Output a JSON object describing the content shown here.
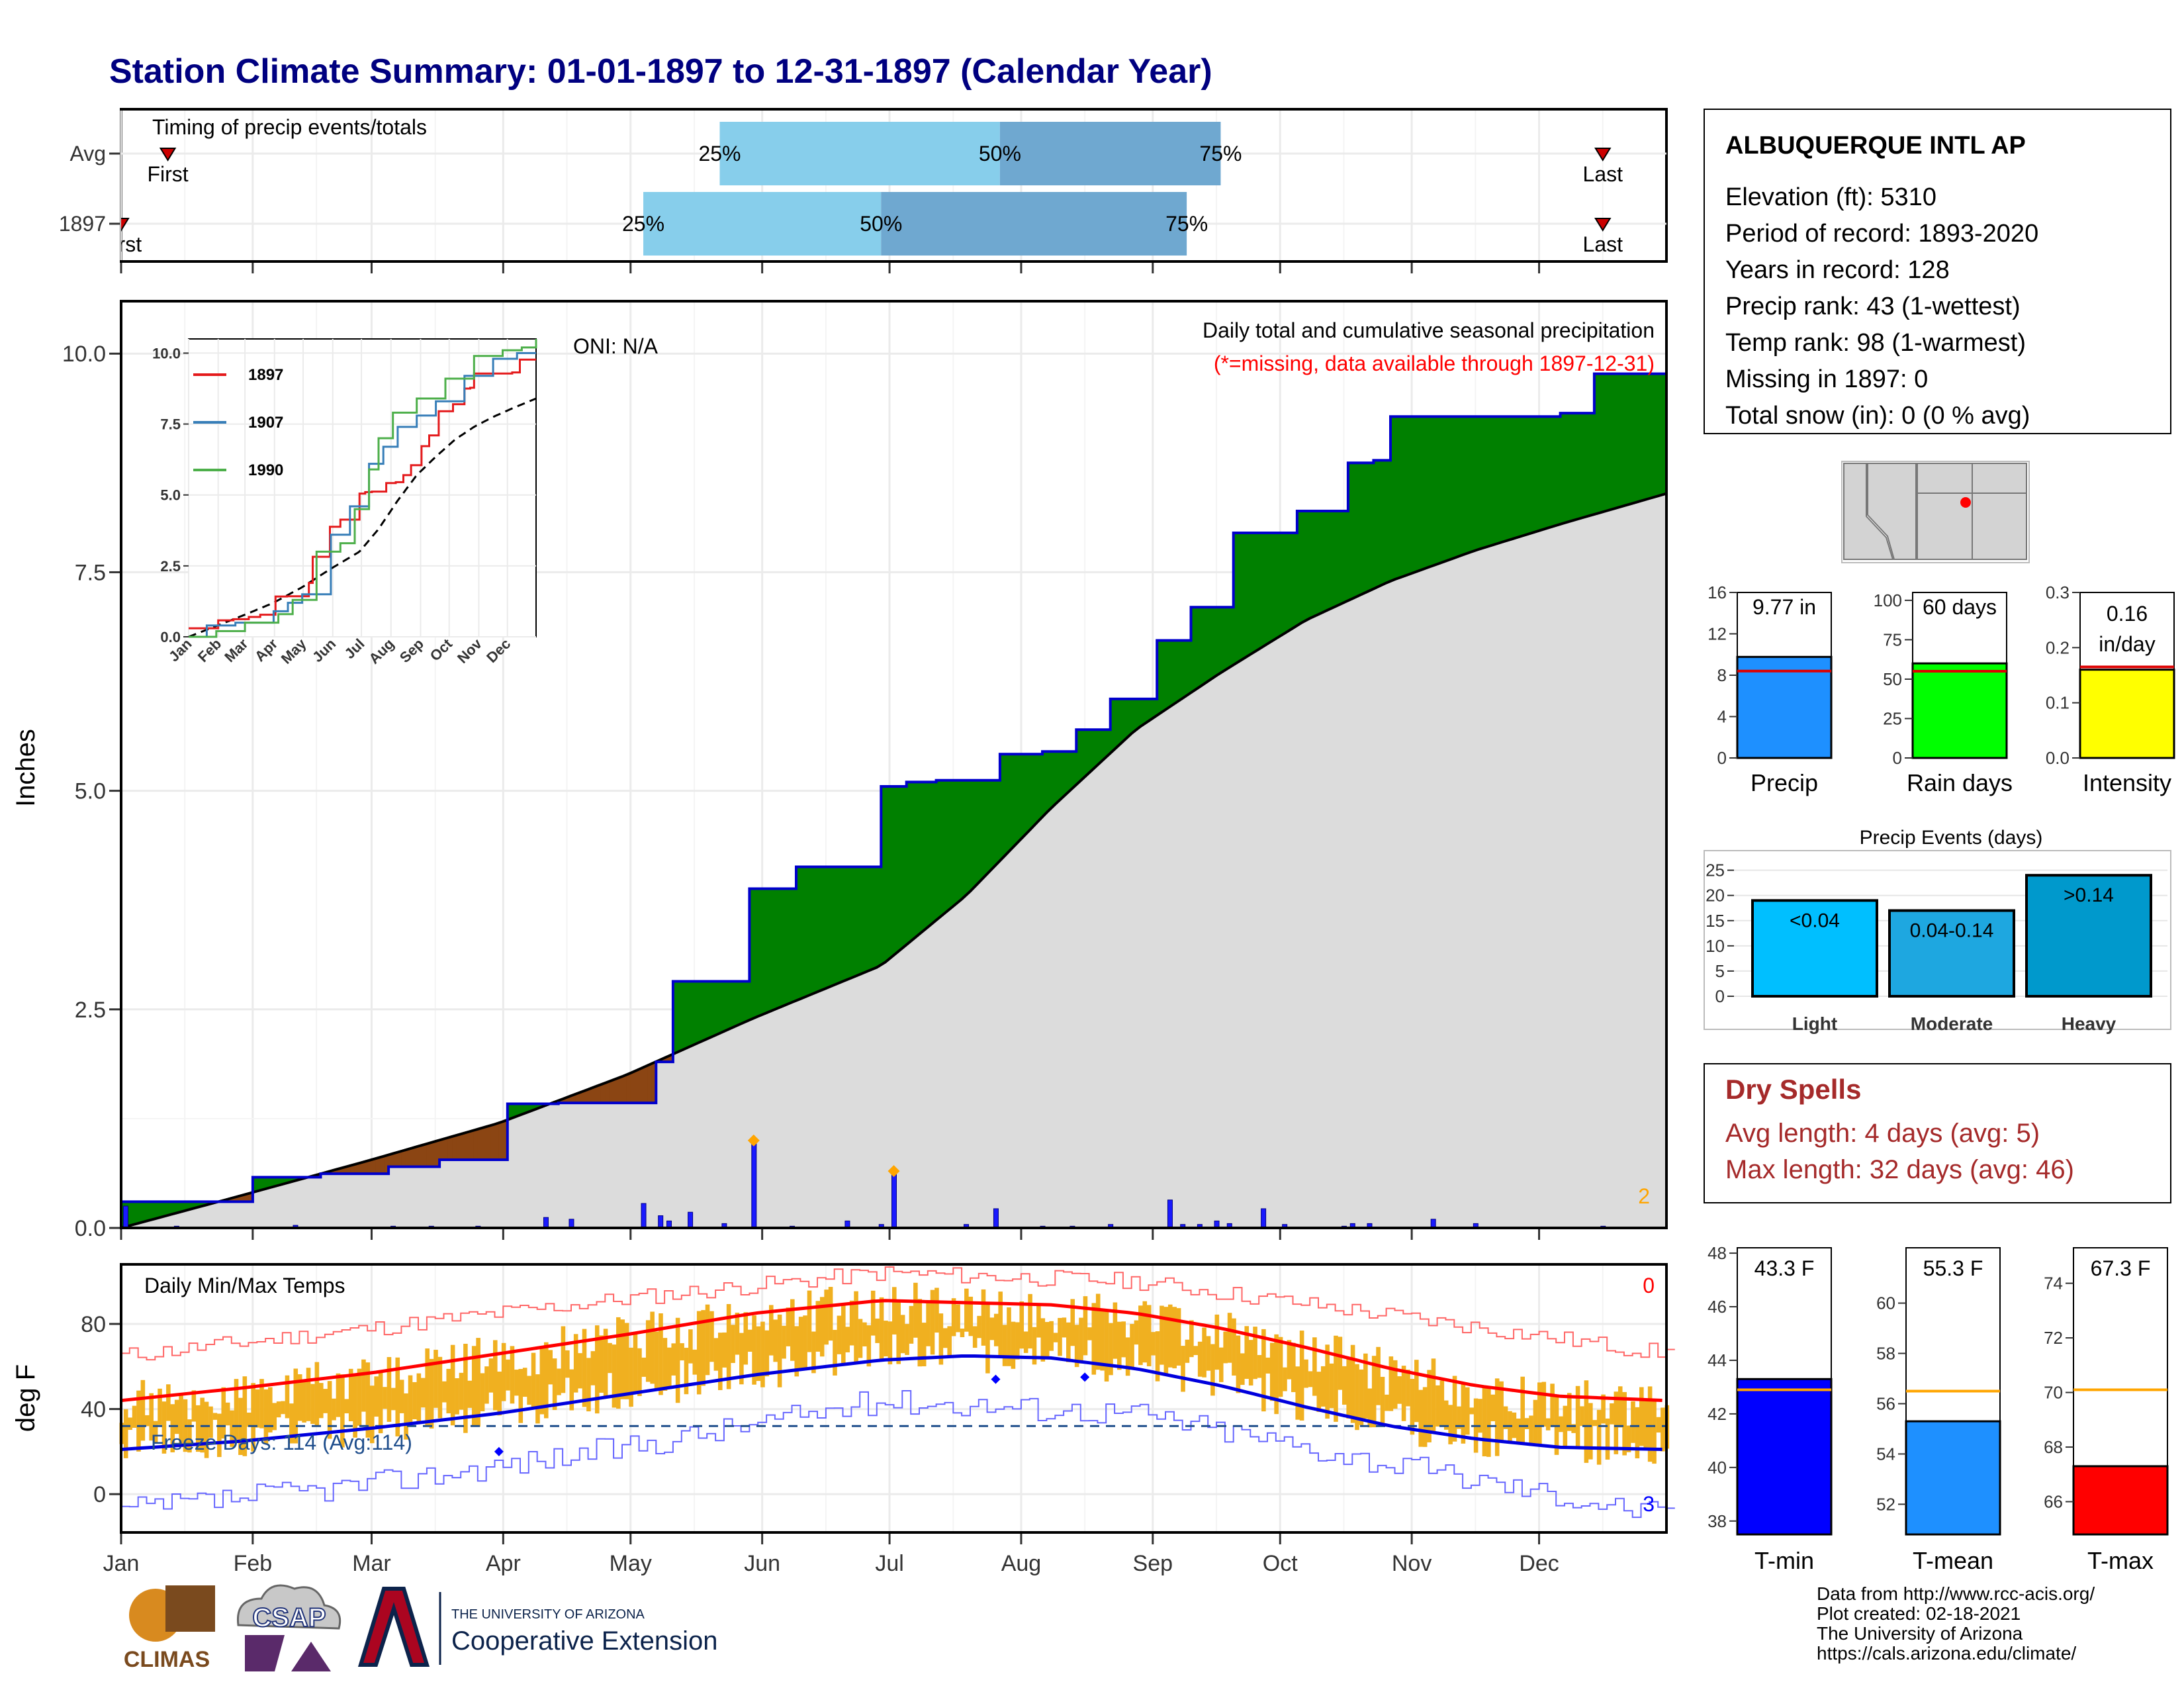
{
  "title": "Station Climate Summary: 01-01-1897 to 12-31-1897 (Calendar Year)",
  "colors": {
    "title": "#000080",
    "precip_green": "#008000",
    "precip_brown": "#8b4513",
    "avg_fill": "#dcdcdc",
    "bar_blue": "#0000ff",
    "light_blue": "#87ceeb",
    "mid_blue": "#6fa8d0",
    "tmax_red": "#ff0000",
    "tmin_blue": "#0000ff",
    "temp_bar": "#f0b020",
    "dry_spell": "#a52a2a"
  },
  "timing": {
    "title": "Timing of precip events/totals",
    "rows": [
      {
        "label": "Avg",
        "first_label": "First",
        "last_label": "Last",
        "first_day": 12,
        "last_day": 350,
        "q25": 142,
        "q50": 208,
        "q75": 260,
        "q25_label": "25%",
        "q50_label": "50%",
        "q75_label": "75%"
      },
      {
        "label": "1897",
        "first_label": "First",
        "last_label": "Last",
        "first_day": 1,
        "last_day": 350,
        "q25": 124,
        "q50": 180,
        "q75": 252,
        "q25_label": "25%",
        "q50_label": "50%",
        "q75_label": "75%"
      }
    ]
  },
  "precip": {
    "ylabel": "Inches",
    "oni": "ONI: N/A",
    "subtitle": "Daily total and cumulative seasonal precipitation",
    "missing_note": "(*=missing, data available through 1897-12-31)",
    "max_count_label": "2",
    "yticks": [
      "0.0",
      "2.5",
      "5.0",
      "7.5",
      "10.0"
    ],
    "ylim": [
      0,
      10.6
    ]
  },
  "inset": {
    "legend": [
      {
        "name": "1897",
        "color": "#e41a1c"
      },
      {
        "name": "1907",
        "color": "#377eb8"
      },
      {
        "name": "1990",
        "color": "#4daf4a"
      }
    ],
    "yticks": [
      "0.0",
      "2.5",
      "5.0",
      "7.5",
      "10.0"
    ],
    "xticks": [
      "Jan",
      "Feb",
      "Mar",
      "Apr",
      "May",
      "Jun",
      "Jul",
      "Aug",
      "Sep",
      "Oct",
      "Nov",
      "Dec"
    ]
  },
  "temps": {
    "title": "Daily Min/Max Temps",
    "ylabel": "deg F",
    "freeze_label": "Freeze Days: 114 (Avg:114)",
    "top_count_label": "0",
    "bottom_count_label": "3",
    "yticks": [
      "0",
      "40",
      "80"
    ],
    "ylim": [
      -18,
      108
    ]
  },
  "months": [
    "Jan",
    "Feb",
    "Mar",
    "Apr",
    "May",
    "Jun",
    "Jul",
    "Aug",
    "Sep",
    "Oct",
    "Nov",
    "Dec"
  ],
  "station": {
    "name": "ALBUQUERQUE INTL AP",
    "lines": [
      "Elevation (ft): 5310",
      "Period of record: 1893-2020",
      "Years in record: 128",
      "Precip rank: 43 (1-wettest)",
      "Temp rank: 98 (1-warmest)",
      "Missing in 1897: 0",
      "Total snow (in): 0 (0 % avg)"
    ]
  },
  "summary_bars": [
    {
      "label": "Precip",
      "value_label": "9.77 in",
      "value": 9.77,
      "avg": 8.4,
      "max": 16,
      "yticks": [
        "0",
        "4",
        "8",
        "12",
        "16"
      ],
      "color": "#1e90ff"
    },
    {
      "label": "Rain days",
      "value_label": "60 days",
      "value": 60,
      "avg": 55,
      "max": 105,
      "yticks": [
        "0",
        "25",
        "50",
        "75",
        "100"
      ],
      "color": "#00ff00"
    },
    {
      "label": "Intensity",
      "value_label": "0.16 in/day",
      "value": 0.16,
      "avg": 0.165,
      "max": 0.3,
      "yticks": [
        "0.0",
        "0.1",
        "0.2",
        "0.3"
      ],
      "color": "#ffff00"
    }
  ],
  "events": {
    "title": "Precip Events (days)",
    "yticks": [
      "0",
      "5",
      "10",
      "15",
      "20",
      "25"
    ],
    "bars": [
      {
        "category": "Light",
        "label": "<0.04",
        "value": 19,
        "color": "#00bfff"
      },
      {
        "category": "Moderate",
        "label": "0.04-0.14",
        "value": 17,
        "color": "#1ea7e0"
      },
      {
        "category": "Heavy",
        "label": ">0.14",
        "value": 24,
        "color": "#0099cc"
      }
    ]
  },
  "dry_spells": {
    "title": "Dry Spells",
    "avg": "Avg length: 4 days (avg: 5)",
    "max": "Max length: 32 days (avg: 46)"
  },
  "temp_bars": [
    {
      "label": "T-min",
      "value_label": "43.3 F",
      "value": 43.3,
      "avg": 42.9,
      "min": 37.5,
      "max": 48.2,
      "yticks": [
        "38",
        "40",
        "42",
        "44",
        "46",
        "48"
      ],
      "color": "#0000ff"
    },
    {
      "label": "T-mean",
      "value_label": "55.3 F",
      "value": 55.3,
      "avg": 56.5,
      "min": 50.8,
      "max": 62.2,
      "yticks": [
        "52",
        "54",
        "56",
        "58",
        "60"
      ],
      "color": "#1e90ff"
    },
    {
      "label": "T-max",
      "value_label": "67.3 F",
      "value": 67.3,
      "avg": 70.1,
      "min": 64.8,
      "max": 75.3,
      "yticks": [
        "66",
        "68",
        "70",
        "72",
        "74"
      ],
      "color": "#ff0000"
    }
  ],
  "credits": [
    "Data from http://www.rcc-acis.org/",
    "Plot created: 02-18-2021",
    "The University of Arizona",
    "https://cals.arizona.edu/climate/"
  ],
  "logos": {
    "climas": "CLIMAS",
    "csap": "CSAP",
    "ua_small": "THE UNIVERSITY OF ARIZONA",
    "ua_big": "Cooperative Extension"
  },
  "chart_data": [
    {
      "type": "area",
      "title": "Daily total and cumulative seasonal precipitation",
      "ylabel": "Inches",
      "ylim": [
        0,
        10.6
      ],
      "series": [
        {
          "name": "1897",
          "x": [
            1,
            16,
            32,
            48,
            64,
            76,
            92,
            104,
            112,
            127,
            131,
            142,
            149,
            160,
            176,
            180,
            186,
            193,
            208,
            218,
            226,
            234,
            245,
            253,
            263,
            273,
            278,
            290,
            296,
            300,
            319,
            340,
            348,
            358,
            365
          ],
          "values": [
            0.3,
            0.3,
            0.58,
            0.62,
            0.7,
            0.78,
            1.42,
            1.43,
            1.43,
            1.9,
            2.82,
            2.82,
            3.88,
            4.13,
            4.13,
            5.05,
            5.1,
            5.12,
            5.42,
            5.45,
            5.7,
            6.05,
            6.72,
            7.1,
            7.95,
            7.95,
            8.2,
            8.75,
            8.78,
            9.28,
            9.28,
            9.32,
            9.77,
            9.77,
            9.77
          ]
        },
        {
          "name": "Avg",
          "x": [
            1,
            30,
            60,
            90,
            120,
            150,
            180,
            200,
            220,
            240,
            260,
            280,
            300,
            320,
            340,
            365
          ],
          "values": [
            0.0,
            0.38,
            0.78,
            1.2,
            1.75,
            2.4,
            3.0,
            3.8,
            4.8,
            5.7,
            6.35,
            6.95,
            7.4,
            7.75,
            8.05,
            8.4
          ]
        }
      ]
    },
    {
      "type": "bar",
      "title": "Daily precipitation",
      "x": [
        2,
        14,
        34,
        42,
        48,
        65,
        74,
        85,
        92,
        101,
        107,
        124,
        128,
        130,
        135,
        143,
        150,
        159,
        172,
        180,
        183,
        192,
        200,
        207,
        218,
        225,
        234,
        248,
        251,
        255,
        259,
        262,
        270,
        275,
        289,
        291,
        295,
        310,
        320,
        328,
        335,
        342,
        350,
        352
      ],
      "values": [
        0.25,
        0.02,
        0.01,
        0.03,
        0.01,
        0.02,
        0.02,
        0.02,
        0.01,
        0.12,
        0.1,
        0.28,
        0.14,
        0.08,
        0.18,
        0.05,
        1.0,
        0.02,
        0.08,
        0.04,
        0.65,
        0.01,
        0.04,
        0.22,
        0.02,
        0.02,
        0.04,
        0.32,
        0.04,
        0.04,
        0.08,
        0.05,
        0.22,
        0.04,
        0.02,
        0.05,
        0.05,
        0.1,
        0.05,
        0.01,
        0.01,
        0.01,
        0.02,
        0.01
      ]
    },
    {
      "type": "line",
      "title": "Daily Min/Max Temps",
      "ylabel": "deg F",
      "ylim": [
        -18,
        108
      ],
      "series": [
        {
          "name": "Avg max",
          "x": [
            1,
            30,
            60,
            90,
            120,
            150,
            180,
            200,
            220,
            240,
            260,
            280,
            300,
            320,
            340,
            365
          ],
          "values": [
            44,
            50,
            57,
            66,
            75,
            85,
            91,
            90,
            89,
            85,
            78,
            69,
            59,
            51,
            46,
            44
          ]
        },
        {
          "name": "Avg min",
          "x": [
            1,
            30,
            60,
            90,
            120,
            150,
            180,
            200,
            220,
            240,
            260,
            280,
            300,
            320,
            340,
            365
          ],
          "values": [
            21,
            25,
            31,
            38,
            47,
            56,
            63,
            65,
            64,
            59,
            51,
            41,
            32,
            26,
            22,
            21
          ]
        },
        {
          "name": "Record max",
          "x": [
            1,
            60,
            120,
            180,
            240,
            300,
            365
          ],
          "values": [
            65,
            78,
            92,
            104,
            100,
            84,
            66
          ]
        },
        {
          "name": "Record min",
          "x": [
            1,
            60,
            120,
            180,
            240,
            300,
            365
          ],
          "values": [
            -8,
            5,
            22,
            44,
            38,
            14,
            -10
          ]
        }
      ],
      "freeze_line": 32
    },
    {
      "type": "bar",
      "title": "Precip",
      "categories": [
        "Precip"
      ],
      "values": [
        9.77
      ],
      "ylim": [
        0,
        16
      ]
    },
    {
      "type": "bar",
      "title": "Rain days",
      "categories": [
        "Rain days"
      ],
      "values": [
        60
      ],
      "ylim": [
        0,
        105
      ]
    },
    {
      "type": "bar",
      "title": "Intensity",
      "categories": [
        "Intensity"
      ],
      "values": [
        0.16
      ],
      "ylim": [
        0,
        0.3
      ]
    },
    {
      "type": "bar",
      "title": "Precip Events (days)",
      "categories": [
        "Light",
        "Moderate",
        "Heavy"
      ],
      "values": [
        19,
        17,
        24
      ],
      "ylim": [
        0,
        25
      ]
    },
    {
      "type": "bar",
      "title": "T-min",
      "categories": [
        "T-min"
      ],
      "values": [
        43.3
      ]
    },
    {
      "type": "bar",
      "title": "T-mean",
      "categories": [
        "T-mean"
      ],
      "values": [
        55.3
      ]
    },
    {
      "type": "bar",
      "title": "T-max",
      "categories": [
        "T-max"
      ],
      "values": [
        67.3
      ]
    }
  ]
}
